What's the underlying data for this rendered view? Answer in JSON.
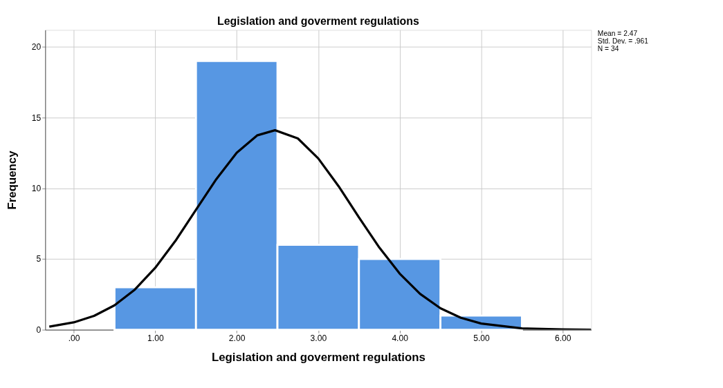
{
  "chart_data": {
    "type": "histogram",
    "title": "Legislation and goverment regulations",
    "xlabel": "Legislation and goverment regulations",
    "ylabel": "Frequency",
    "bins": [
      0.5,
      1.5,
      2.5,
      3.5,
      4.5,
      5.5
    ],
    "values": [
      3,
      19,
      6,
      5,
      1
    ],
    "color": "#5797e3",
    "series": [
      {
        "type": "line",
        "color": "#000000",
        "x": [
          -0.3,
          0,
          0.25,
          0.5,
          0.75,
          1.0,
          1.25,
          1.5,
          1.75,
          2.0,
          2.25,
          2.47,
          2.75,
          3.0,
          3.25,
          3.5,
          3.75,
          4.0,
          4.25,
          4.5,
          4.75,
          5.0,
          5.5,
          6.0,
          6.35
        ],
        "values": [
          0.22,
          0.52,
          0.98,
          1.73,
          2.84,
          4.38,
          6.3,
          8.48,
          10.65,
          12.52,
          13.74,
          14.11,
          13.53,
          12.12,
          10.15,
          7.95,
          5.81,
          3.97,
          2.54,
          1.52,
          0.85,
          0.44,
          0.1,
          0.02,
          0.0
        ]
      }
    ],
    "xlim": [
      -0.35,
      6.35
    ],
    "ylim": [
      0,
      21.2
    ],
    "xticks": [
      {
        "value": 0,
        "label": ".00"
      },
      {
        "value": 1,
        "label": "1.00"
      },
      {
        "value": 2,
        "label": "2.00"
      },
      {
        "value": 3,
        "label": "3.00"
      },
      {
        "value": 4,
        "label": "4.00"
      },
      {
        "value": 5,
        "label": "5.00"
      },
      {
        "value": 6,
        "label": "6.00"
      }
    ],
    "yticks": [
      0,
      5,
      10,
      15,
      20
    ],
    "grid": true,
    "annotations": [
      "Mean = 2.47",
      "Std. Dev. = .961",
      "N = 34"
    ]
  }
}
